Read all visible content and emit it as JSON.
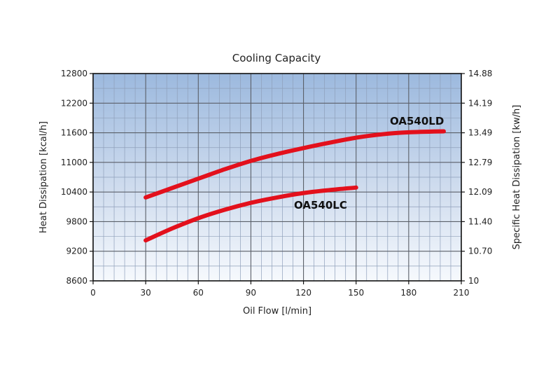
{
  "chart_data": {
    "type": "line",
    "title": "Cooling Capacity",
    "xlabel": "Oil Flow [l/min]",
    "ylabel": "Heat Dissipation [kcal/h]",
    "y2label": "Specific Heat Dissipation [kw/h]",
    "xlim": [
      0,
      210
    ],
    "ylim": [
      8600,
      12800
    ],
    "x_ticks": [
      0,
      30,
      60,
      90,
      120,
      150,
      180,
      210
    ],
    "y_ticks": [
      8600,
      9200,
      9800,
      10400,
      11000,
      11600,
      12200,
      12800
    ],
    "y2_ticks": [
      "10",
      "10.70",
      "11.40",
      "12.09",
      "12.79",
      "13.49",
      "14.19",
      "14.88"
    ],
    "grid": true,
    "series": [
      {
        "name": "OA540LD",
        "color": "#e3101c",
        "x": [
          30,
          45,
          60,
          75,
          90,
          105,
          120,
          135,
          150,
          165,
          180,
          200
        ],
        "y": [
          10290,
          10480,
          10670,
          10860,
          11030,
          11170,
          11290,
          11400,
          11500,
          11570,
          11610,
          11630
        ]
      },
      {
        "name": "OA540LC",
        "color": "#e3101c",
        "x": [
          30,
          45,
          60,
          75,
          90,
          105,
          120,
          135,
          150
        ],
        "y": [
          9420,
          9660,
          9870,
          10040,
          10180,
          10290,
          10380,
          10440,
          10490
        ]
      }
    ]
  }
}
